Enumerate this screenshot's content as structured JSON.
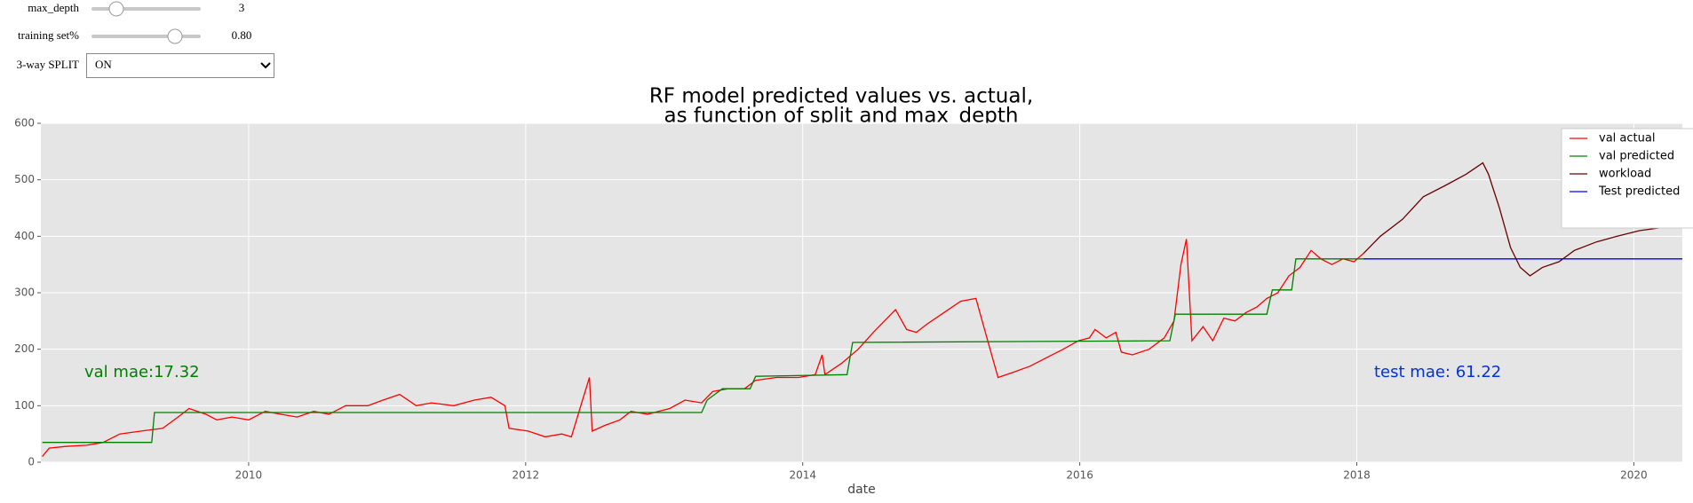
{
  "controls": [
    {
      "label": "max_depth",
      "value": 3
    },
    {
      "label": "training set%",
      "value": "0.80"
    },
    {
      "label": "3-way SPLIT",
      "value": "ON"
    }
  ],
  "chart_data": {
    "type": "line",
    "title": "RF model predicted values vs. actual,",
    "subtitle": "as function of split and max_depth",
    "x_label": "date",
    "xlim": [
      2008.5,
      2020.35
    ],
    "xticks": [
      2010,
      2012,
      2014,
      2016,
      2018,
      2020
    ],
    "ylim": [
      0,
      600
    ],
    "yticks": [
      0,
      100,
      200,
      300,
      400,
      500,
      600
    ],
    "grid": true,
    "legend": "upper right",
    "annotations": [
      {
        "text": "val mae:17.32",
        "color": "#008000"
      },
      {
        "text": "test mae: 61.22",
        "color": "#0033dd"
      }
    ],
    "series": [
      {
        "name": "val actual",
        "color": "#ff0000",
        "x": [
          2008.51,
          2008.56,
          2008.68,
          2008.83,
          2008.95,
          2009.07,
          2009.22,
          2009.38,
          2009.49,
          2009.57,
          2009.69,
          2009.77,
          2009.88,
          2010.0,
          2010.12,
          2010.23,
          2010.35,
          2010.47,
          2010.58,
          2010.7,
          2010.86,
          2010.97,
          2011.09,
          2011.21,
          2011.32,
          2011.48,
          2011.63,
          2011.75,
          2011.85,
          2011.88,
          2012.02,
          2012.14,
          2012.26,
          2012.33,
          2012.41,
          2012.46,
          2012.48,
          2012.57,
          2012.68,
          2012.76,
          2012.88,
          2013.04,
          2013.15,
          2013.27,
          2013.35,
          2013.46,
          2013.58,
          2013.66,
          2013.81,
          2013.97,
          2014.09,
          2014.14,
          2014.16,
          2014.28,
          2014.4,
          2014.51,
          2014.59,
          2014.67,
          2014.75,
          2014.82,
          2014.9,
          2015.02,
          2015.14,
          2015.25,
          2015.33,
          2015.41,
          2015.53,
          2015.64,
          2015.76,
          2015.88,
          2015.99,
          2016.07,
          2016.11,
          2016.19,
          2016.26,
          2016.3,
          2016.38,
          2016.5,
          2016.61,
          2016.68,
          2016.73,
          2016.77,
          2016.81,
          2016.89,
          2016.96,
          2017.04,
          2017.12,
          2017.2,
          2017.28,
          2017.35,
          2017.43,
          2017.51,
          2017.59,
          2017.67,
          2017.74,
          2017.82,
          2017.9,
          2017.98,
          2018.05
        ],
        "values": [
          10,
          25,
          28,
          30,
          35,
          50,
          55,
          60,
          80,
          95,
          85,
          75,
          80,
          75,
          90,
          85,
          80,
          90,
          85,
          100,
          100,
          110,
          120,
          100,
          105,
          100,
          110,
          115,
          100,
          60,
          55,
          45,
          50,
          45,
          110,
          150,
          55,
          65,
          75,
          90,
          85,
          95,
          110,
          105,
          125,
          130,
          130,
          145,
          150,
          150,
          155,
          190,
          155,
          175,
          200,
          230,
          250,
          270,
          235,
          230,
          245,
          265,
          285,
          290,
          220,
          150,
          160,
          170,
          185,
          200,
          215,
          220,
          235,
          220,
          230,
          195,
          190,
          200,
          220,
          250,
          350,
          395,
          215,
          240,
          215,
          255,
          250,
          265,
          275,
          290,
          300,
          330,
          345,
          375,
          360,
          350,
          360,
          355,
          370
        ]
      },
      {
        "name": "val predicted",
        "color": "#008000",
        "x": [
          2008.51,
          2009.3,
          2009.32,
          2013.27,
          2013.31,
          2013.42,
          2013.62,
          2013.66,
          2014.32,
          2014.36,
          2016.65,
          2016.69,
          2017.35,
          2017.39,
          2017.53,
          2017.56,
          2018.07
        ],
        "values": [
          35,
          35,
          88,
          88,
          110,
          130,
          130,
          152,
          155,
          212,
          215,
          262,
          262,
          305,
          305,
          360,
          360
        ]
      },
      {
        "name": "workload",
        "color": "#6b0000",
        "x": [
          2018.05,
          2018.17,
          2018.33,
          2018.48,
          2018.64,
          2018.79,
          2018.91,
          2018.95,
          2019.03,
          2019.11,
          2019.18,
          2019.25,
          2019.34,
          2019.46,
          2019.57,
          2019.73,
          2019.88,
          2020.04,
          2020.19,
          2020.33
        ],
        "values": [
          370,
          400,
          430,
          470,
          490,
          510,
          530,
          510,
          450,
          380,
          345,
          330,
          345,
          355,
          375,
          390,
          400,
          410,
          415,
          430
        ]
      },
      {
        "name": "Test predicted",
        "color": "#0000ff",
        "x": [
          2018.05,
          2020.35
        ],
        "values": [
          360,
          360
        ]
      }
    ]
  }
}
